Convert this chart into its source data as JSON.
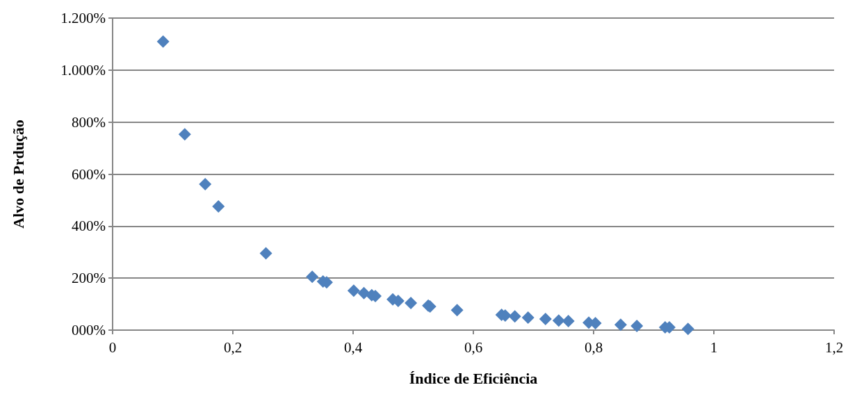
{
  "chart_data": {
    "type": "scatter",
    "xlabel": "Índice de Eficiência",
    "ylabel": "Alvo de Prdução",
    "x": [
      0.084,
      0.12,
      0.154,
      0.176,
      0.255,
      0.332,
      0.35,
      0.356,
      0.401,
      0.418,
      0.431,
      0.437,
      0.466,
      0.475,
      0.496,
      0.525,
      0.528,
      0.573,
      0.647,
      0.653,
      0.669,
      0.691,
      0.72,
      0.742,
      0.758,
      0.792,
      0.803,
      0.845,
      0.872,
      0.919,
      0.926,
      0.957
    ],
    "values": [
      1110,
      753,
      561,
      476,
      295,
      205,
      187,
      184,
      152,
      142,
      134,
      131,
      118,
      112,
      104,
      94,
      91,
      77,
      59,
      56,
      53,
      48,
      43,
      37,
      35,
      29,
      27,
      21,
      16,
      11,
      11,
      5
    ],
    "color": "#4f81bd",
    "marker": "diamond",
    "grid": "y",
    "xlim": [
      0,
      1.2
    ],
    "xticks": [
      0,
      {
        "value": 0.2,
        "label": "0,2"
      },
      {
        "value": 0.4,
        "label": "0,4"
      },
      {
        "value": 0.6,
        "label": "0,6"
      },
      {
        "value": 0.8,
        "label": "0,8"
      },
      1,
      {
        "value": 1.2,
        "label": "1,2"
      }
    ],
    "ylim": [
      0,
      1200
    ],
    "yticks": [
      {
        "value": 0,
        "label": "000%"
      },
      {
        "value": 200,
        "label": "200%"
      },
      {
        "value": 400,
        "label": "400%"
      },
      {
        "value": 600,
        "label": "600%"
      },
      {
        "value": 800,
        "label": "800%"
      },
      {
        "value": 1000,
        "label": "1.000%"
      },
      {
        "value": 1200,
        "label": "1.200%"
      }
    ]
  }
}
